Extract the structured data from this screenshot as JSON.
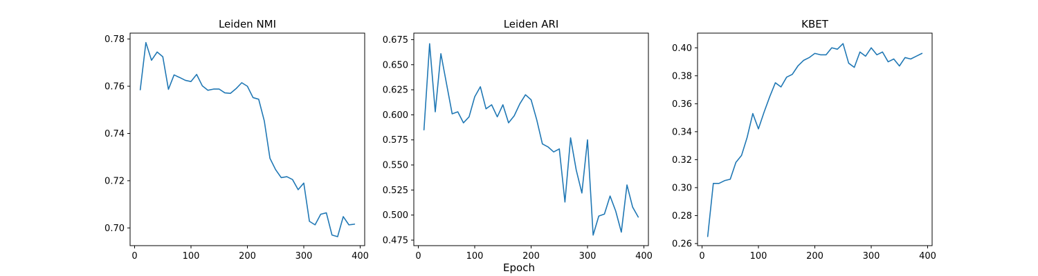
{
  "figure": {
    "shared_xlabel": "Epoch",
    "line_color": "#1f77b4"
  },
  "chart_data": [
    {
      "type": "line",
      "title": "Leiden NMI",
      "xlabel": "",
      "ylabel": "",
      "xlim": [
        -8,
        408
      ],
      "ylim": [
        0.6925,
        0.7825
      ],
      "xticks": [
        0,
        100,
        200,
        300,
        400
      ],
      "yticks": [
        0.7,
        0.72,
        0.74,
        0.76,
        0.78
      ],
      "ytick_decimals": 2,
      "x": [
        10,
        20,
        30,
        40,
        50,
        60,
        70,
        80,
        90,
        100,
        110,
        120,
        130,
        140,
        150,
        160,
        170,
        180,
        190,
        200,
        210,
        220,
        230,
        240,
        250,
        260,
        270,
        280,
        290,
        300,
        310,
        320,
        330,
        340,
        350,
        360,
        370,
        380,
        390
      ],
      "y": [
        0.7585,
        0.7785,
        0.771,
        0.7745,
        0.7725,
        0.7587,
        0.7648,
        0.7637,
        0.7625,
        0.762,
        0.765,
        0.7602,
        0.7583,
        0.7588,
        0.7588,
        0.7572,
        0.757,
        0.759,
        0.7615,
        0.76,
        0.7552,
        0.7545,
        0.7453,
        0.7295,
        0.7247,
        0.7213,
        0.7217,
        0.7205,
        0.7162,
        0.719,
        0.7028,
        0.7013,
        0.7058,
        0.7064,
        0.697,
        0.6963,
        0.7048,
        0.7013,
        0.7016
      ]
    },
    {
      "type": "line",
      "title": "Leiden ARI",
      "xlabel": "",
      "ylabel": "",
      "xlim": [
        -8,
        408
      ],
      "ylim": [
        0.4695,
        0.6815
      ],
      "xticks": [
        0,
        100,
        200,
        300,
        400
      ],
      "yticks": [
        0.475,
        0.5,
        0.525,
        0.55,
        0.575,
        0.6,
        0.625,
        0.65,
        0.675
      ],
      "ytick_decimals": 3,
      "x": [
        10,
        20,
        30,
        40,
        50,
        60,
        70,
        80,
        90,
        100,
        110,
        120,
        130,
        140,
        150,
        160,
        170,
        180,
        190,
        200,
        210,
        220,
        230,
        240,
        250,
        260,
        270,
        280,
        290,
        300,
        310,
        320,
        330,
        340,
        350,
        360,
        370,
        380,
        390
      ],
      "y": [
        0.585,
        0.671,
        0.603,
        0.661,
        0.631,
        0.601,
        0.603,
        0.592,
        0.598,
        0.618,
        0.628,
        0.606,
        0.61,
        0.598,
        0.61,
        0.592,
        0.599,
        0.611,
        0.62,
        0.615,
        0.595,
        0.571,
        0.568,
        0.563,
        0.566,
        0.513,
        0.577,
        0.545,
        0.522,
        0.575,
        0.48,
        0.499,
        0.501,
        0.519,
        0.504,
        0.483,
        0.53,
        0.508,
        0.498
      ]
    },
    {
      "type": "line",
      "title": "KBET",
      "xlabel": "",
      "ylabel": "",
      "xlim": [
        -8,
        408
      ],
      "ylim": [
        0.2585,
        0.4105
      ],
      "xticks": [
        0,
        100,
        200,
        300,
        400
      ],
      "yticks": [
        0.26,
        0.28,
        0.3,
        0.32,
        0.34,
        0.36,
        0.38,
        0.4
      ],
      "ytick_decimals": 2,
      "x": [
        10,
        20,
        30,
        40,
        50,
        60,
        70,
        80,
        90,
        100,
        110,
        120,
        130,
        140,
        150,
        160,
        170,
        180,
        190,
        200,
        210,
        220,
        230,
        240,
        250,
        260,
        270,
        280,
        290,
        300,
        310,
        320,
        330,
        340,
        350,
        360,
        370,
        380,
        390
      ],
      "y": [
        0.265,
        0.303,
        0.303,
        0.305,
        0.306,
        0.318,
        0.323,
        0.336,
        0.353,
        0.342,
        0.354,
        0.365,
        0.375,
        0.372,
        0.379,
        0.381,
        0.387,
        0.391,
        0.393,
        0.396,
        0.395,
        0.395,
        0.4,
        0.399,
        0.403,
        0.389,
        0.386,
        0.397,
        0.394,
        0.4,
        0.395,
        0.397,
        0.39,
        0.392,
        0.387,
        0.393,
        0.392,
        0.394,
        0.396
      ]
    }
  ]
}
